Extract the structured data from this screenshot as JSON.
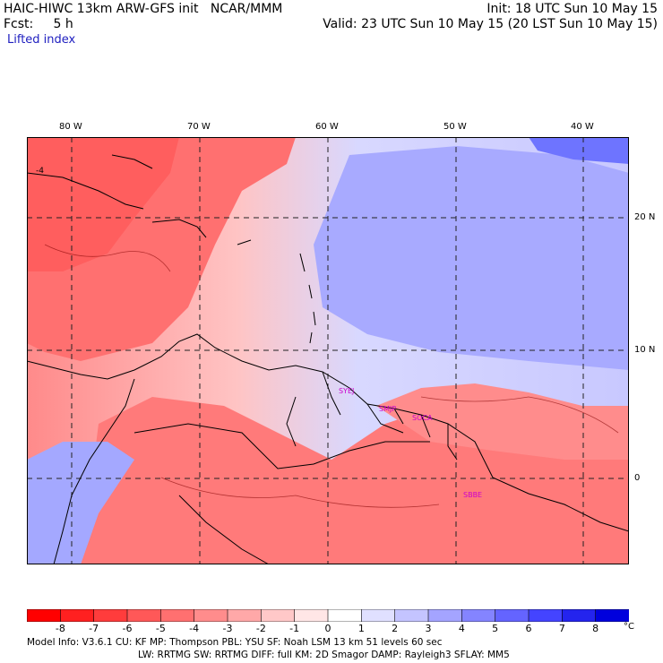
{
  "header": {
    "title": "HAIC-HIWC 13km ARW-GFS init   NCAR/MMM",
    "fcst": "Fcst:     5 h",
    "field": "Lifted index",
    "init": "Init: 18 UTC Sun 10 May 15",
    "valid": "Valid: 23 UTC Sun 10 May 15 (20 LST Sun 10 May 15)"
  },
  "map": {
    "lon_labels": [
      "80 W",
      "70 W",
      "60 W",
      "50 W",
      "40 W"
    ],
    "lat_labels": [
      "20 N",
      "10 N",
      "0"
    ],
    "stations": [
      "SYEJ",
      "SMJP",
      "SOCA",
      "SBBE"
    ],
    "contour_labels": [
      "-4"
    ],
    "colors": {
      "warm": "#ff7070",
      "cool": "#9aa0ff",
      "border": "#000000",
      "station": "#cc00cc"
    }
  },
  "colorbar": {
    "labels": [
      "-8",
      "-7",
      "-6",
      "-5",
      "-4",
      "-3",
      "-2",
      "-1",
      "0",
      "1",
      "2",
      "3",
      "4",
      "5",
      "6",
      "7",
      "8"
    ],
    "unit": "°C",
    "colors": [
      "#ff0000",
      "#ff2020",
      "#ff3c3c",
      "#ff5858",
      "#ff7070",
      "#ff8c8c",
      "#ffa8a8",
      "#ffc8c8",
      "#ffe6e6",
      "#ffffff",
      "#e0e0ff",
      "#c4c4ff",
      "#a4a4ff",
      "#8484ff",
      "#6464ff",
      "#4444ff",
      "#2424ee",
      "#0000dd"
    ]
  },
  "footer": {
    "line1": "Model Info: V3.6.1    CU: KF     MP: Thompson     PBL: YSU       SF: Noah LSM     13 km   51 levels   60 sec",
    "line2": "LW: RRTMG    SW: RRTMG   DIFF: full   KM: 2D Smagor DAMP: Rayleigh3   SFLAY: MM5"
  }
}
